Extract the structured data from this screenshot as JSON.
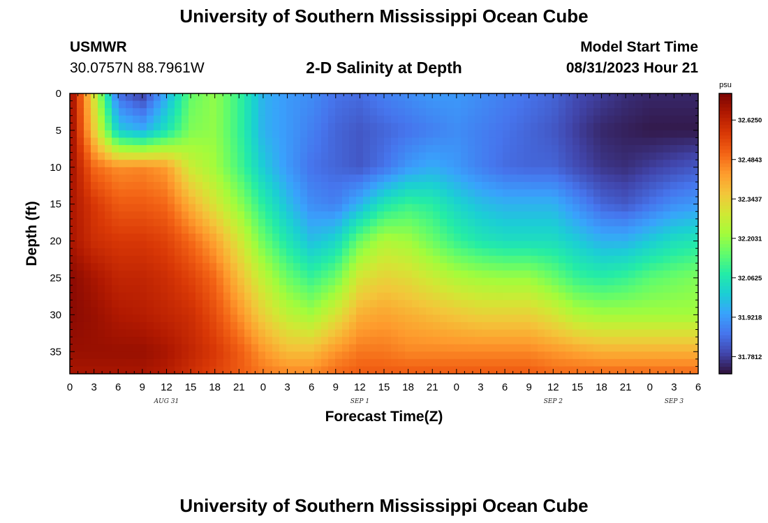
{
  "header": {
    "title": "University of Southern Mississippi Ocean Cube",
    "station": "USMWR",
    "location": "30.0757N  88.7961W",
    "plot_title": "2-D Salinity at Depth",
    "model_start_label": "Model Start Time",
    "model_start_value": "08/31/2023 Hour 21"
  },
  "footer": {
    "title": "University of Southern Mississippi Ocean Cube"
  },
  "chart_data": {
    "type": "heatmap",
    "title": "2-D Salinity at Depth",
    "xlabel": "Forecast Time(Z)",
    "ylabel": "Depth (ft)",
    "x_range_hours_from_aug31_00z": [
      0,
      78
    ],
    "x_tick_labels": [
      "0",
      "3",
      "6",
      "9",
      "12",
      "15",
      "18",
      "21",
      "0",
      "3",
      "6",
      "9",
      "12",
      "15",
      "18",
      "21",
      "0",
      "3",
      "6",
      "9",
      "12",
      "15",
      "18",
      "21",
      "0",
      "3",
      "6"
    ],
    "date_labels": [
      {
        "text": "AUG 31",
        "hour": 12
      },
      {
        "text": "SEP 1",
        "hour": 36
      },
      {
        "text": "SEP 2",
        "hour": 60
      },
      {
        "text": "SEP 3",
        "hour": 75
      }
    ],
    "y_range_ft": [
      0,
      38
    ],
    "y_ticks": [
      0,
      5,
      10,
      15,
      20,
      25,
      30,
      35
    ],
    "y_tick_labels": [
      "0",
      "5",
      "10",
      "15",
      "20",
      "25",
      "30",
      "35"
    ],
    "colorbar": {
      "unit": "psu",
      "ticks": [
        "32.6250",
        "32.4843",
        "32.3437",
        "32.2031",
        "32.0625",
        "31.9218",
        "31.7812"
      ],
      "range": [
        31.72,
        32.72
      ]
    },
    "salinity_grid": {
      "depths_ft": [
        0,
        5,
        10,
        15,
        20,
        25,
        30,
        35,
        38
      ],
      "hours": [
        0,
        3,
        6,
        9,
        12,
        15,
        18,
        21,
        24,
        27,
        30,
        33,
        36,
        39,
        42,
        45,
        48,
        51,
        54,
        57,
        60,
        63,
        66,
        69,
        72,
        75,
        78
      ],
      "values": [
        [
          32.7,
          32.3,
          31.85,
          31.78,
          31.95,
          32.15,
          32.2,
          32.1,
          31.96,
          31.92,
          31.9,
          31.86,
          31.85,
          31.88,
          31.9,
          31.92,
          31.92,
          31.9,
          31.88,
          31.86,
          31.84,
          31.8,
          31.78,
          31.76,
          31.75,
          31.75,
          31.75
        ],
        [
          32.7,
          32.35,
          32.0,
          31.95,
          32.05,
          32.18,
          32.2,
          32.1,
          31.96,
          31.92,
          31.88,
          31.84,
          31.82,
          31.84,
          31.86,
          31.88,
          31.9,
          31.88,
          31.86,
          31.84,
          31.82,
          31.78,
          31.75,
          31.74,
          31.73,
          31.73,
          31.73
        ],
        [
          32.68,
          32.5,
          32.45,
          32.46,
          32.43,
          32.28,
          32.22,
          32.12,
          32.0,
          31.92,
          31.86,
          31.84,
          31.82,
          31.86,
          31.92,
          31.95,
          31.92,
          31.88,
          31.85,
          31.84,
          31.84,
          31.8,
          31.77,
          31.76,
          31.78,
          31.8,
          31.82
        ],
        [
          32.66,
          32.58,
          32.52,
          32.52,
          32.5,
          32.4,
          32.3,
          32.2,
          32.08,
          31.98,
          31.9,
          31.88,
          31.96,
          32.06,
          32.1,
          32.08,
          32.02,
          31.98,
          31.96,
          31.96,
          31.96,
          31.9,
          31.84,
          31.82,
          31.86,
          31.9,
          31.92
        ],
        [
          32.66,
          32.6,
          32.58,
          32.58,
          32.56,
          32.5,
          32.42,
          32.3,
          32.16,
          32.06,
          31.98,
          32.02,
          32.16,
          32.24,
          32.22,
          32.16,
          32.1,
          32.06,
          32.04,
          32.04,
          32.04,
          32.0,
          31.96,
          31.96,
          32.0,
          32.04,
          32.06
        ],
        [
          32.7,
          32.66,
          32.62,
          32.62,
          32.6,
          32.56,
          32.5,
          32.38,
          32.26,
          32.16,
          32.1,
          32.16,
          32.3,
          32.34,
          32.32,
          32.28,
          32.24,
          32.22,
          32.21,
          32.21,
          32.16,
          32.1,
          32.08,
          32.1,
          32.14,
          32.16,
          32.18
        ],
        [
          32.7,
          32.68,
          32.65,
          32.64,
          32.62,
          32.6,
          32.54,
          32.45,
          32.34,
          32.26,
          32.22,
          32.3,
          32.4,
          32.42,
          32.4,
          32.38,
          32.36,
          32.34,
          32.34,
          32.34,
          32.3,
          32.24,
          32.22,
          32.22,
          32.22,
          32.22,
          32.22
        ],
        [
          32.68,
          32.68,
          32.68,
          32.68,
          32.66,
          32.62,
          32.58,
          32.52,
          32.44,
          32.38,
          32.38,
          32.44,
          32.48,
          32.48,
          32.46,
          32.46,
          32.46,
          32.46,
          32.46,
          32.46,
          32.44,
          32.42,
          32.4,
          32.4,
          32.4,
          32.4,
          32.4
        ],
        [
          32.66,
          32.66,
          32.66,
          32.66,
          32.64,
          32.6,
          32.56,
          32.52,
          32.48,
          32.46,
          32.46,
          32.5,
          32.52,
          32.52,
          32.52,
          32.52,
          32.52,
          32.52,
          32.52,
          32.52,
          32.5,
          32.5,
          32.5,
          32.5,
          32.5,
          32.5,
          32.5
        ]
      ]
    }
  },
  "colors": {
    "colormap": [
      "#30123b",
      "#4145ab",
      "#4675ed",
      "#39a2fc",
      "#1bcfd4",
      "#24eca6",
      "#61fc6c",
      "#a4fc3b",
      "#d1e834",
      "#f3c63a",
      "#fe9b2d",
      "#f36315",
      "#d93806",
      "#b11901",
      "#7a0402"
    ]
  }
}
